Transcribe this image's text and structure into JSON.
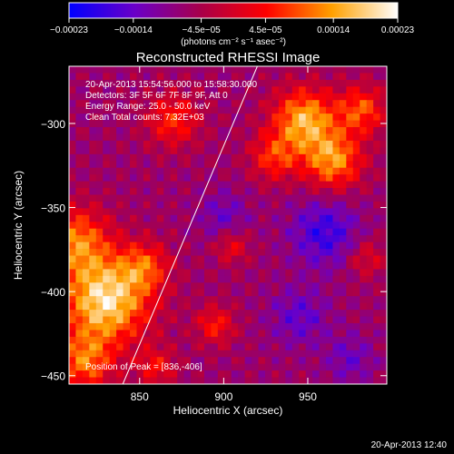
{
  "chart_data": {
    "type": "heatmap",
    "title": "Reconstructed RHESSI Image",
    "xlabel": "Heliocentric X (arcsec)",
    "ylabel": "Heliocentric Y (arcsec)",
    "xlim": [
      808,
      997
    ],
    "ylim": [
      -455,
      -266
    ],
    "x_ticks": [
      850,
      900,
      950
    ],
    "x_tick_labels": [
      "850",
      "900",
      "950"
    ],
    "y_ticks": [
      -300,
      -350,
      -400,
      -450
    ],
    "y_tick_labels": [
      "−300",
      "−350",
      "−400",
      "−450"
    ],
    "colorbar": {
      "range": [
        -0.00023,
        0.00023
      ],
      "tick_values": [
        -0.00023,
        -0.00014,
        -4.5e-05,
        4.5e-05,
        0.00014,
        0.00023
      ],
      "tick_labels": [
        "−0.00023",
        "−0.00014",
        "−4.5e−05",
        "4.5e−05",
        "0.00014",
        "0.00023"
      ],
      "units": "(photons cm⁻² s⁻¹ asec⁻²)",
      "colors": [
        "#0000ff",
        "#6a00c8",
        "#a8004a",
        "#ff0000",
        "#ffa000",
        "#ffffff"
      ]
    },
    "annotations": [
      "20-Apr-2013 15:54:56.000 to 15:58:30.000",
      "Detectors: 3F 5F 6F 7F 8F 9F, Att 0",
      "Energy Range: 25.0 - 50.0 keV",
      "Clean     Total counts: 7.32E+03"
    ],
    "peak_label": "Position of Peak = [836,-406]",
    "limb_line": [
      [
        840,
        -455
      ],
      [
        920,
        -266
      ]
    ],
    "sources": [
      {
        "x": 830,
        "y": -405,
        "amp": 1.15,
        "sigma": 18
      },
      {
        "x": 812,
        "y": -370,
        "amp": 0.75,
        "sigma": 14
      },
      {
        "x": 817,
        "y": -442,
        "amp": 0.7,
        "sigma": 12
      },
      {
        "x": 853,
        "y": -385,
        "amp": 0.55,
        "sigma": 10
      },
      {
        "x": 870,
        "y": -298,
        "amp": 0.55,
        "sigma": 11
      },
      {
        "x": 948,
        "y": -298,
        "amp": 0.95,
        "sigma": 13
      },
      {
        "x": 965,
        "y": -322,
        "amp": 0.85,
        "sigma": 12
      },
      {
        "x": 982,
        "y": -292,
        "amp": 0.65,
        "sigma": 10
      },
      {
        "x": 930,
        "y": -320,
        "amp": 0.55,
        "sigma": 10
      },
      {
        "x": 895,
        "y": -420,
        "amp": 0.5,
        "sigma": 8
      },
      {
        "x": 860,
        "y": -445,
        "amp": 0.45,
        "sigma": 8
      },
      {
        "x": 905,
        "y": -373,
        "amp": 0.4,
        "sigma": 7
      },
      {
        "x": 985,
        "y": -380,
        "amp": 0.35,
        "sigma": 8
      },
      {
        "x": 960,
        "y": -365,
        "amp": -0.5,
        "sigma": 14
      },
      {
        "x": 945,
        "y": -415,
        "amp": -0.35,
        "sigma": 12
      },
      {
        "x": 900,
        "y": -355,
        "amp": -0.3,
        "sigma": 10
      },
      {
        "x": 975,
        "y": -440,
        "amp": -0.3,
        "sigma": 10
      }
    ]
  },
  "footer": {
    "timestamp": "20-Apr-2013 12:40"
  }
}
